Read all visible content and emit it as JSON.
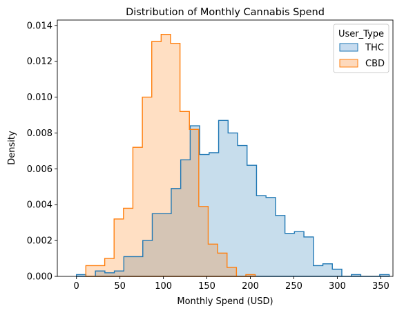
{
  "chart_data": {
    "type": "histogram-step",
    "title": "Distribution of Monthly Cannabis Spend",
    "xlabel": "Monthly Spend (USD)",
    "ylabel": "Density",
    "xlim": [
      -22,
      364
    ],
    "ylim": [
      0,
      0.0143
    ],
    "x_ticks": [
      0,
      50,
      100,
      150,
      200,
      250,
      300,
      350
    ],
    "y_ticks": [
      0.0,
      0.002,
      0.004,
      0.006,
      0.008,
      0.01,
      0.012,
      0.014
    ],
    "y_tick_labels": [
      "0.000",
      "0.002",
      "0.004",
      "0.006",
      "0.008",
      "0.010",
      "0.012",
      "0.014"
    ],
    "grid": false,
    "legend": {
      "title": "User_Type",
      "placement": "top-right",
      "entries": [
        "THC",
        "CBD"
      ]
    },
    "series": [
      {
        "name": "THC",
        "color": "#1f77b4",
        "fill": "#c6dbef",
        "bin_edges": [
          0,
          10.9,
          21.8,
          32.7,
          43.6,
          54.5,
          65.4,
          76.3,
          87.2,
          98.1,
          109,
          119.9,
          130.8,
          141.7,
          152.6,
          163.5,
          174.4,
          185.3,
          196.2,
          207.1,
          218,
          228.9,
          239.8,
          250.7,
          261.6,
          272.5,
          283.4,
          294.3,
          305.2,
          316.1,
          327,
          337.9,
          348.8,
          359.7
        ],
        "densities": [
          0.0001,
          0.0,
          0.0003,
          0.0002,
          0.0003,
          0.0011,
          0.0011,
          0.002,
          0.0035,
          0.0035,
          0.0049,
          0.0065,
          0.0084,
          0.0068,
          0.0069,
          0.0087,
          0.008,
          0.0073,
          0.0062,
          0.0045,
          0.0044,
          0.0034,
          0.0024,
          0.0025,
          0.0022,
          0.0006,
          0.0007,
          0.0004,
          0.0,
          0.0001,
          0.0,
          0.0,
          0.0001
        ]
      },
      {
        "name": "CBD",
        "color": "#ff7f0e",
        "fill": "#fdd9bc",
        "bin_edges": [
          10.8,
          21.6,
          32.5,
          43.3,
          54.1,
          64.9,
          75.8,
          86.6,
          97.4,
          108.2,
          119.1,
          129.9,
          140.7,
          151.5,
          162.4,
          173.2,
          184.0,
          194.8,
          205.6
        ],
        "densities": [
          0.0006,
          0.0006,
          0.001,
          0.0032,
          0.0038,
          0.0072,
          0.01,
          0.0131,
          0.0135,
          0.013,
          0.0092,
          0.0082,
          0.0039,
          0.0018,
          0.0013,
          0.0005,
          0.0,
          0.0001
        ]
      }
    ]
  }
}
